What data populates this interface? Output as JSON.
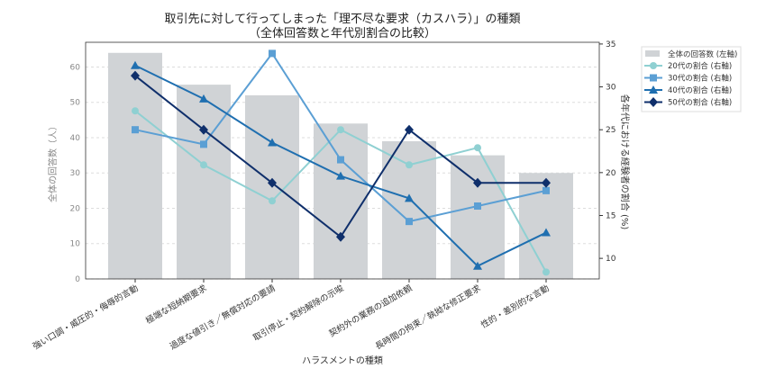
{
  "chart_data": {
    "type": "bar+line",
    "title": "取引先に対して行ってしまった「理不尽な要求（カスハラ）」の種類",
    "subtitle": "（全体回答数と年代別割合の比較）",
    "xlabel": "ハラスメントの種類",
    "ylabel_left": "全体の回答数（人）",
    "ylabel_right": "各年代における経験者の割合 (%)",
    "categories": [
      "強い口調・威圧的・侮辱的言動",
      "極端な短納期要求",
      "過度な値引き／無償対応の要請",
      "取引停止・契約解除の示唆",
      "契約外の業務の追加依頼",
      "長時間の拘束／執拗な修正要求",
      "性的・差別的な言動"
    ],
    "ylim_left": [
      0,
      67
    ],
    "yticks_left": [
      0,
      10,
      20,
      30,
      40,
      50,
      60
    ],
    "ylim_right": [
      7.6,
      35.2
    ],
    "yticks_right": [
      10,
      15,
      20,
      25,
      30,
      35
    ],
    "grid": "horizontal dashed",
    "legend_position": "outside top-right",
    "bars": {
      "name": "全体の回答数 (左軸)",
      "color": "#d0d3d6",
      "values": [
        64,
        55,
        52,
        44,
        39,
        35,
        30
      ]
    },
    "series": [
      {
        "name": "20代の割合 (右軸)",
        "color": "#8fd0d2",
        "marker": "circle",
        "values": [
          27.2,
          20.9,
          16.7,
          25.0,
          20.9,
          22.9,
          8.4
        ]
      },
      {
        "name": "30代の割合 (右軸)",
        "color": "#5b9fd4",
        "marker": "square",
        "values": [
          25.0,
          23.3,
          33.9,
          21.5,
          14.3,
          16.1,
          17.9
        ]
      },
      {
        "name": "40代の割合 (右軸)",
        "color": "#1f6fb0",
        "marker": "triangle",
        "values": [
          32.5,
          28.6,
          23.5,
          19.6,
          17.0,
          9.1,
          13.0
        ]
      },
      {
        "name": "50代の割合 (右軸)",
        "color": "#0f2f6b",
        "marker": "diamond",
        "values": [
          31.3,
          25.0,
          18.8,
          12.5,
          25.0,
          18.8,
          18.8
        ]
      }
    ]
  }
}
